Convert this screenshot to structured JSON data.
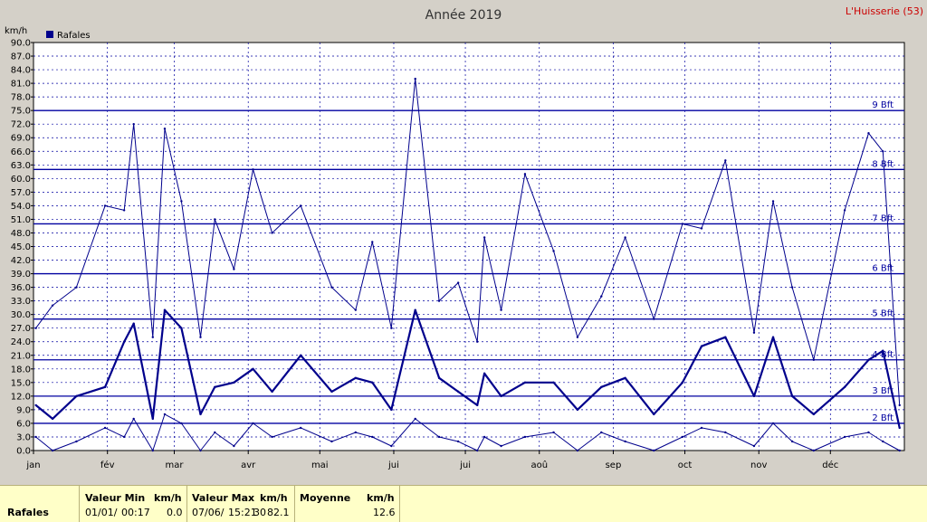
{
  "chart_data": {
    "type": "line",
    "title": "Année 2019",
    "station": "L'Huisserie (53)",
    "ylabel": "km/h",
    "ylim": [
      0,
      90
    ],
    "yticks": [
      "0.0",
      "3.0",
      "6.0",
      "9.0",
      "12.0",
      "15.0",
      "18.0",
      "21.0",
      "24.0",
      "27.0",
      "30.0",
      "33.0",
      "36.0",
      "39.0",
      "42.0",
      "45.0",
      "48.0",
      "51.0",
      "54.0",
      "57.0",
      "60.0",
      "63.0",
      "66.0",
      "69.0",
      "72.0",
      "75.0",
      "78.0",
      "81.0",
      "84.0",
      "87.0",
      "90.0"
    ],
    "xticks": [
      "jan",
      "fév",
      "mar",
      "avr",
      "mai",
      "jui",
      "jui",
      "aoû",
      "sep",
      "oct",
      "nov",
      "déc"
    ],
    "legend": {
      "label": "Rafales",
      "placement": "top-left"
    },
    "beaufort": [
      {
        "label": "2 Bft",
        "value": 6
      },
      {
        "label": "3 Bft",
        "value": 12
      },
      {
        "label": "4 Bft",
        "value": 20
      },
      {
        "label": "5 Bft",
        "value": 29
      },
      {
        "label": "6 Bft",
        "value": 39
      },
      {
        "label": "7 Bft",
        "value": 50
      },
      {
        "label": "8 Bft",
        "value": 62
      },
      {
        "label": "9 Bft",
        "value": 75
      }
    ],
    "grid": true,
    "colors": {
      "background": "#ffffff",
      "series": "#00008c",
      "grid": "#0000a0",
      "axis": "#000000",
      "station": "#cc0000"
    },
    "series": [
      {
        "name": "Rafales",
        "style": "max-envelope",
        "x": [
          1,
          8,
          18,
          30,
          38,
          42,
          50,
          55,
          62,
          70,
          76,
          84,
          92,
          100,
          112,
          125,
          135,
          142,
          150,
          160,
          170,
          178,
          186,
          189,
          196,
          206,
          218,
          228,
          238,
          248,
          260,
          272,
          280,
          290,
          302,
          310,
          318,
          327,
          340,
          350,
          356,
          363
        ],
        "values": [
          27,
          32,
          36,
          54,
          53,
          72,
          25,
          71,
          55,
          25,
          51,
          40,
          62,
          48,
          54,
          36,
          31,
          46,
          27,
          82,
          33,
          37,
          24,
          47,
          31,
          61,
          44,
          25,
          34,
          47,
          29,
          50,
          49,
          64,
          26,
          55,
          36,
          20,
          53,
          70,
          66,
          10
        ]
      },
      {
        "name": "Rafales",
        "style": "mean",
        "x": [
          1,
          8,
          18,
          30,
          38,
          42,
          50,
          55,
          62,
          70,
          76,
          84,
          92,
          100,
          112,
          125,
          135,
          142,
          150,
          160,
          170,
          178,
          186,
          189,
          196,
          206,
          218,
          228,
          238,
          248,
          260,
          272,
          280,
          290,
          302,
          310,
          318,
          327,
          340,
          350,
          356,
          363
        ],
        "values": [
          10,
          7,
          12,
          14,
          24,
          28,
          7,
          31,
          27,
          8,
          14,
          15,
          18,
          13,
          21,
          13,
          16,
          15,
          9,
          31,
          16,
          13,
          10,
          17,
          12,
          15,
          15,
          9,
          14,
          16,
          8,
          15,
          23,
          25,
          12,
          25,
          12,
          8,
          14,
          20,
          22,
          5
        ]
      },
      {
        "name": "Rafales",
        "style": "min-envelope",
        "x": [
          1,
          8,
          18,
          30,
          38,
          42,
          50,
          55,
          62,
          70,
          76,
          84,
          92,
          100,
          112,
          125,
          135,
          142,
          150,
          160,
          170,
          178,
          186,
          189,
          196,
          206,
          218,
          228,
          238,
          248,
          260,
          272,
          280,
          290,
          302,
          310,
          318,
          327,
          340,
          350,
          356,
          363
        ],
        "values": [
          3,
          0,
          2,
          5,
          3,
          7,
          0,
          8,
          6,
          0,
          4,
          1,
          6,
          3,
          5,
          2,
          4,
          3,
          1,
          7,
          3,
          2,
          0,
          3,
          1,
          3,
          4,
          0,
          4,
          2,
          0,
          3,
          5,
          4,
          1,
          6,
          2,
          0,
          3,
          4,
          2,
          0
        ]
      }
    ]
  },
  "stats": {
    "row_label": "Rafales",
    "min_header": "Valeur Min",
    "min_unit": "km/h",
    "min_date": "01/01/",
    "min_time": "00:17",
    "min_value": "0.0",
    "max_header": "Valeur Max",
    "max_unit": "km/h",
    "max_date": "07/06/",
    "max_time": "15:21",
    "max_stamp": "30",
    "max_value": "82.1",
    "avg_header": "Moyenne",
    "avg_unit": "km/h",
    "avg_value": "12.6"
  }
}
